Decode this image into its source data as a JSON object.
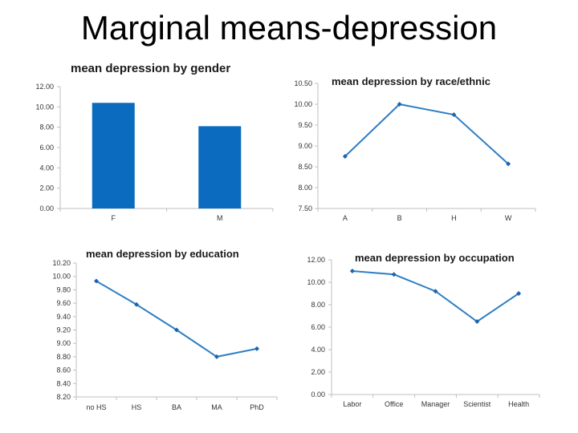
{
  "slide": {
    "title": "Marginal means-depression"
  },
  "colors": {
    "bar": "#0a6bbf",
    "line": "#2e7fc5",
    "marker": "#1f63a8",
    "axis": "#bfbfbf"
  },
  "chart_data": [
    {
      "id": "gender",
      "type": "bar",
      "title": "mean depression by gender",
      "categories": [
        "F",
        "M"
      ],
      "values": [
        10.4,
        8.1
      ],
      "ylim": [
        0,
        12
      ],
      "yticks": [
        "0.00",
        "2.00",
        "4.00",
        "6.00",
        "8.00",
        "10.00",
        "12.00"
      ],
      "grid": false,
      "legend": "none"
    },
    {
      "id": "race",
      "type": "line",
      "title": "mean depression by race/ethnic",
      "categories": [
        "A",
        "B",
        "H",
        "W"
      ],
      "values": [
        8.75,
        10.0,
        9.75,
        8.57
      ],
      "ylim": [
        7.5,
        10.5
      ],
      "yticks": [
        "7.50",
        "8.00",
        "8.50",
        "9.00",
        "9.50",
        "10.00",
        "10.50"
      ],
      "grid": false,
      "legend": "none"
    },
    {
      "id": "education",
      "type": "line",
      "title": "mean depression by education",
      "categories": [
        "no HS",
        "HS",
        "BA",
        "MA",
        "PhD"
      ],
      "values": [
        9.93,
        9.58,
        9.2,
        8.8,
        8.92
      ],
      "ylim": [
        8.2,
        10.2
      ],
      "yticks": [
        "8.20",
        "8.40",
        "8.60",
        "8.80",
        "9.00",
        "9.20",
        "9.40",
        "9.60",
        "9.80",
        "10.00",
        "10.20"
      ],
      "grid": false,
      "legend": "none"
    },
    {
      "id": "occupation",
      "type": "line",
      "title": "mean depression by occupation",
      "categories": [
        "Labor",
        "Office",
        "Manager",
        "Scientist",
        "Health"
      ],
      "values": [
        11.0,
        10.7,
        9.2,
        6.5,
        9.0
      ],
      "ylim": [
        0,
        12
      ],
      "yticks": [
        "0.00",
        "2.00",
        "4.00",
        "6.00",
        "8.00",
        "10.00",
        "12.00"
      ],
      "grid": false,
      "legend": "none"
    }
  ]
}
